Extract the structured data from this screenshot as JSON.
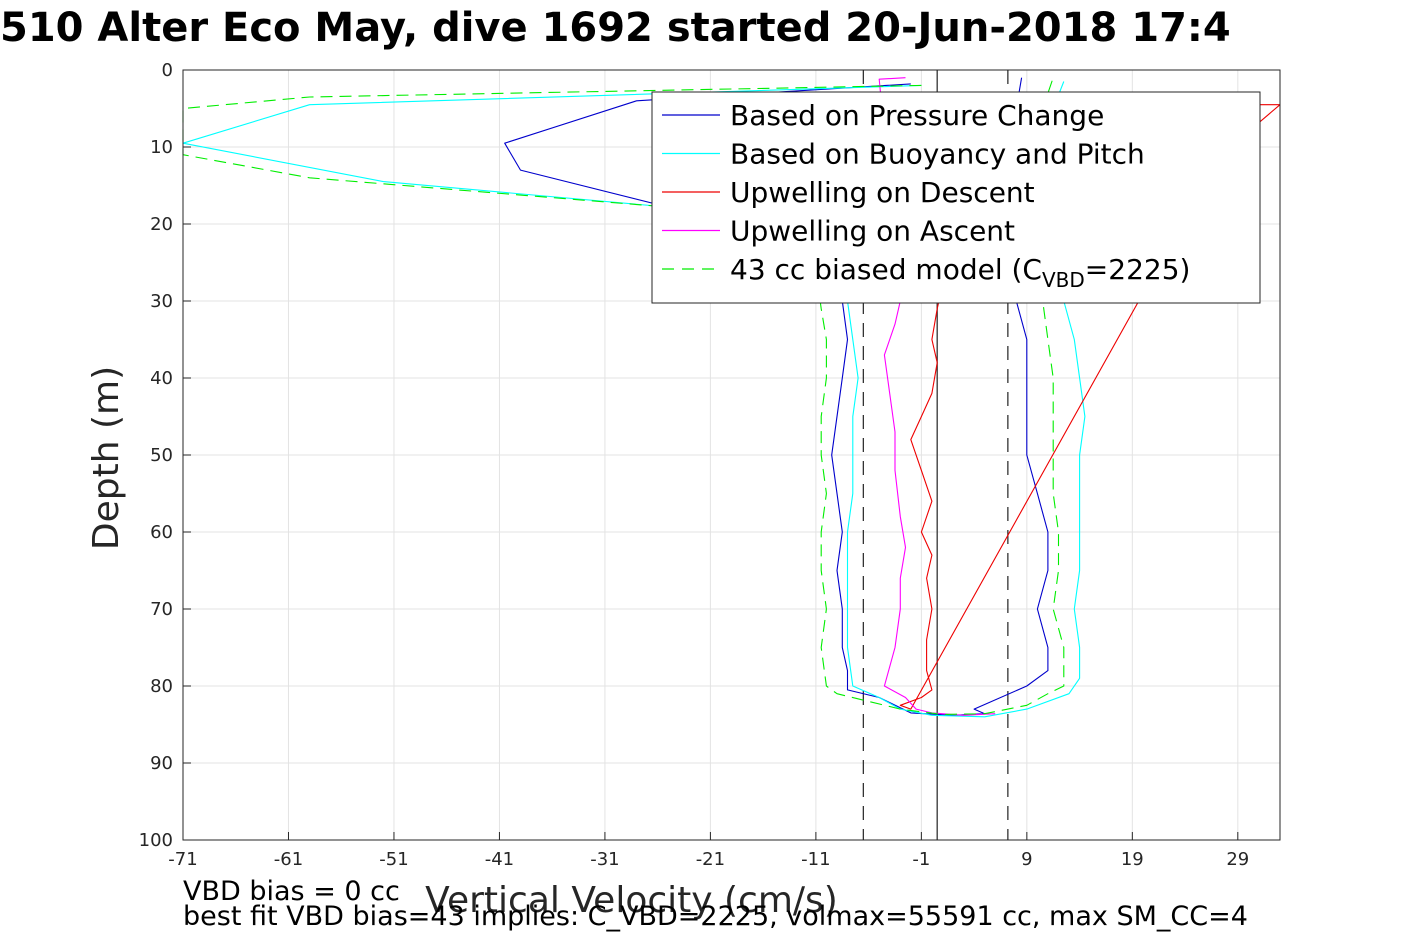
{
  "title": "510 Alter Eco May, dive 1692 started 20-Jun-2018 17:4",
  "notes": {
    "vbd_bias": "VBD bias = 0 cc",
    "best_fit": "best fit VBD bias=43 implies: C_VBD=2225, volmax=55591 cc, max SM_CC=4"
  },
  "chart_data": {
    "type": "line",
    "xlabel": "Vertical Velocity (cm/s)",
    "ylabel": "Depth (m)",
    "xlim": [
      -71,
      33
    ],
    "ylim": [
      0,
      100
    ],
    "y_reversed": true,
    "grid": true,
    "legend_position": "top-right",
    "xticks": [
      -71,
      -61,
      -51,
      -41,
      -31,
      -21,
      -11,
      -1,
      9,
      19,
      29
    ],
    "yticks": [
      0,
      10,
      20,
      30,
      40,
      50,
      60,
      70,
      80,
      90,
      100
    ],
    "legend": [
      {
        "label": "Based on Pressure Change",
        "color": "#0000cc",
        "dash": "solid"
      },
      {
        "label": "Based on Buoyancy and Pitch",
        "color": "#00ffff",
        "dash": "solid"
      },
      {
        "label": "Upwelling on Descent",
        "color": "#ee0000",
        "dash": "solid"
      },
      {
        "label": "Upwelling on Ascent",
        "color": "#ff00ff",
        "dash": "solid"
      },
      {
        "label": "43 cc biased model (C",
        "sub": "VBD",
        "suffix": "=2225)",
        "color": "#00ee00",
        "dash": "dashed"
      }
    ],
    "reference_lines": [
      {
        "x": -6.5,
        "style": "dashed",
        "color": "#333333"
      },
      {
        "x": 0.5,
        "style": "solid",
        "color": "#333333"
      },
      {
        "x": 7.2,
        "style": "dashed",
        "color": "#333333"
      }
    ],
    "series": [
      {
        "color": "#0000cc",
        "dash": "solid",
        "points": [
          [
            -2,
            1.8
          ],
          [
            -28,
            4
          ],
          [
            -40.5,
            9.5
          ],
          [
            -39,
            13
          ],
          [
            -25,
            17.8
          ],
          [
            -10,
            21
          ],
          [
            -8,
            26
          ],
          [
            -8.5,
            30
          ],
          [
            -8,
            35
          ],
          [
            -8.5,
            40
          ],
          [
            -9,
            45
          ],
          [
            -9.5,
            50
          ],
          [
            -9,
            55
          ],
          [
            -8.5,
            60
          ],
          [
            -9,
            65
          ],
          [
            -8.5,
            70
          ],
          [
            -8.5,
            75
          ],
          [
            -8,
            78
          ],
          [
            -8,
            80.5
          ],
          [
            -5,
            81.5
          ],
          [
            -2,
            83.5
          ],
          [
            2,
            83.8
          ],
          [
            5,
            83.6
          ],
          [
            4,
            83
          ],
          [
            9,
            80
          ],
          [
            11,
            78
          ],
          [
            11,
            75
          ],
          [
            10,
            70
          ],
          [
            11,
            65
          ],
          [
            11,
            60
          ],
          [
            10,
            55
          ],
          [
            9,
            50
          ],
          [
            9,
            45
          ],
          [
            9,
            40
          ],
          [
            9,
            35
          ],
          [
            8,
            30
          ],
          [
            8,
            5
          ],
          [
            8.5,
            1
          ]
        ]
      },
      {
        "color": "#00ffff",
        "dash": "solid",
        "points": [
          [
            -1,
            2
          ],
          [
            -59,
            4.5
          ],
          [
            -71,
            9.5
          ],
          [
            -52,
            14.5
          ],
          [
            -25,
            17.8
          ],
          [
            -10,
            21
          ],
          [
            -8,
            26
          ],
          [
            -8,
            30
          ],
          [
            -7.5,
            35
          ],
          [
            -7,
            40
          ],
          [
            -7.5,
            45
          ],
          [
            -7.5,
            50
          ],
          [
            -7.5,
            55
          ],
          [
            -8,
            60
          ],
          [
            -8,
            65
          ],
          [
            -8,
            70
          ],
          [
            -8,
            75
          ],
          [
            -7.5,
            80
          ],
          [
            -5,
            81.5
          ],
          [
            -3,
            83
          ],
          [
            0,
            83.8
          ],
          [
            5,
            84
          ],
          [
            9,
            83
          ],
          [
            13,
            81
          ],
          [
            14,
            79
          ],
          [
            14,
            75
          ],
          [
            13.5,
            70
          ],
          [
            14,
            65
          ],
          [
            14,
            60
          ],
          [
            14,
            55
          ],
          [
            14,
            50
          ],
          [
            14.5,
            45
          ],
          [
            14,
            40
          ],
          [
            13.5,
            35
          ],
          [
            12.5,
            30
          ],
          [
            11.5,
            5
          ],
          [
            12.5,
            1.5
          ]
        ]
      },
      {
        "color": "#ee0000",
        "dash": "solid",
        "points": [
          [
            1,
            28
          ],
          [
            0.5,
            31
          ],
          [
            0,
            35
          ],
          [
            0.5,
            38
          ],
          [
            0,
            42
          ],
          [
            -1,
            45
          ],
          [
            -2,
            48
          ],
          [
            -1,
            52
          ],
          [
            0,
            56
          ],
          [
            -1,
            60
          ],
          [
            0,
            63
          ],
          [
            -0.5,
            66
          ],
          [
            0,
            70
          ],
          [
            -0.5,
            74
          ],
          [
            -0.5,
            78
          ],
          [
            0,
            80.5
          ],
          [
            -1,
            81.5
          ],
          [
            -3,
            82.5
          ],
          [
            -2,
            83
          ],
          [
            30,
            4.5
          ],
          [
            33,
            4.5
          ],
          [
            30,
            8
          ]
        ]
      },
      {
        "color": "#ff00ff",
        "dash": "solid",
        "points": [
          [
            -2.5,
            1
          ],
          [
            -5,
            1.2
          ],
          [
            -3,
            30
          ],
          [
            -3.5,
            33
          ],
          [
            -4.5,
            37
          ],
          [
            -4,
            42
          ],
          [
            -3.5,
            47
          ],
          [
            -3.5,
            52
          ],
          [
            -3,
            58
          ],
          [
            -2.5,
            62
          ],
          [
            -3,
            66
          ],
          [
            -3,
            70
          ],
          [
            -3.5,
            75
          ],
          [
            -4.5,
            80
          ],
          [
            -2.5,
            81.5
          ],
          [
            -1.5,
            83
          ],
          [
            0,
            83.5
          ],
          [
            3,
            83.8
          ],
          [
            6,
            83.6
          ]
        ]
      },
      {
        "color": "#00ee00",
        "dash": "dashed",
        "points": [
          [
            -1,
            2
          ],
          [
            -59,
            3.5
          ],
          [
            -71,
            5
          ],
          [
            -71,
            11
          ],
          [
            -59,
            14
          ],
          [
            -25,
            17.8
          ],
          [
            -12,
            21
          ],
          [
            -11,
            26
          ],
          [
            -10.5,
            31
          ],
          [
            -10,
            35
          ],
          [
            -10,
            40
          ],
          [
            -10.5,
            45
          ],
          [
            -10.5,
            50
          ],
          [
            -10,
            55
          ],
          [
            -10.5,
            60
          ],
          [
            -10.5,
            65
          ],
          [
            -10,
            70
          ],
          [
            -10.5,
            75
          ],
          [
            -10,
            80
          ],
          [
            -9,
            81
          ],
          [
            -6,
            82
          ],
          [
            -3,
            83
          ],
          [
            1,
            83.7
          ],
          [
            5,
            83.6
          ],
          [
            9,
            82.5
          ],
          [
            11,
            81
          ],
          [
            12.5,
            80
          ],
          [
            12.5,
            75
          ],
          [
            11.5,
            70
          ],
          [
            12,
            65
          ],
          [
            12,
            60
          ],
          [
            11.5,
            55
          ],
          [
            11.5,
            50
          ],
          [
            11.5,
            45
          ],
          [
            11.5,
            40
          ],
          [
            11,
            35
          ],
          [
            10.5,
            30
          ],
          [
            10.5,
            5
          ],
          [
            11.5,
            1
          ]
        ]
      }
    ]
  }
}
